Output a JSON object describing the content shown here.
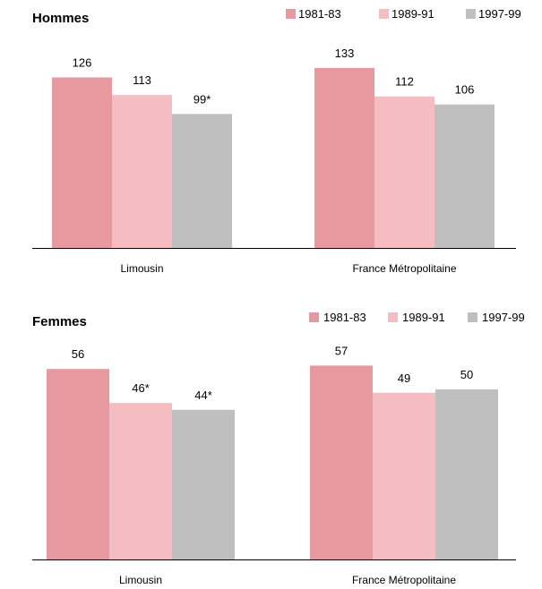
{
  "colors": {
    "s1981": "#E8989F",
    "s1989": "#F4BDC1",
    "s1997": "#BFBFBF",
    "axis": "#000000"
  },
  "chart_data": [
    {
      "type": "bar",
      "title": "Hommes",
      "categories": [
        "Limousin",
        "France Métropolitaine"
      ],
      "series": [
        {
          "name": "1981-83",
          "values": [
            126,
            133
          ],
          "labels": [
            "126",
            "133"
          ]
        },
        {
          "name": "1989-91",
          "values": [
            113,
            112
          ],
          "labels": [
            "113",
            "112"
          ]
        },
        {
          "name": "1997-99",
          "values": [
            99,
            106
          ],
          "labels": [
            "99*",
            "106"
          ]
        }
      ],
      "ylim": [
        0,
        150
      ],
      "legend": "top-right",
      "grid": false
    },
    {
      "type": "bar",
      "title": "Femmes",
      "categories": [
        "Limousin",
        "France Métropolitaine"
      ],
      "series": [
        {
          "name": "1981-83",
          "values": [
            56,
            57
          ],
          "labels": [
            "56",
            "57"
          ]
        },
        {
          "name": "1989-91",
          "values": [
            46,
            49
          ],
          "labels": [
            "46*",
            "49"
          ]
        },
        {
          "name": "1997-99",
          "values": [
            44,
            50
          ],
          "labels": [
            "44*",
            "50"
          ]
        }
      ],
      "ylim": [
        0,
        64
      ],
      "legend": "top-right",
      "grid": false
    }
  ]
}
